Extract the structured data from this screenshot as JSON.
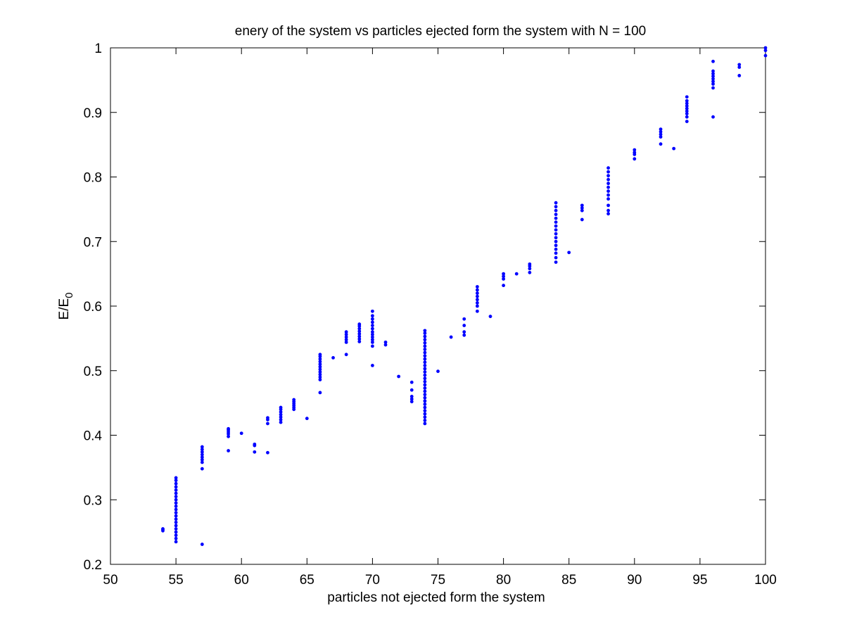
{
  "chart_data": {
    "type": "scatter",
    "title": "enery of the system vs particles ejected form the system with N = 100",
    "xlabel": "particles not ejected form the system",
    "ylabel_main": "E/E",
    "ylabel_sub": "0",
    "xlim": [
      50,
      100
    ],
    "ylim": [
      0.2,
      1.0
    ],
    "xticks": [
      "50",
      "55",
      "60",
      "65",
      "70",
      "75",
      "80",
      "85",
      "90",
      "95",
      "100"
    ],
    "yticks": [
      "0.2",
      "0.3",
      "0.4",
      "0.5",
      "0.6",
      "0.7",
      "0.8",
      "0.9",
      "1"
    ],
    "grid": false,
    "marker_color": "#0000ff",
    "axis_color": "#000000",
    "background": "#ffffff",
    "points": [
      [
        54,
        0.252
      ],
      [
        54,
        0.254
      ],
      [
        54,
        0.255
      ],
      [
        55,
        0.235
      ],
      [
        55,
        0.24
      ],
      [
        55,
        0.245
      ],
      [
        55,
        0.25
      ],
      [
        55,
        0.255
      ],
      [
        55,
        0.26
      ],
      [
        55,
        0.265
      ],
      [
        55,
        0.27
      ],
      [
        55,
        0.275
      ],
      [
        55,
        0.28
      ],
      [
        55,
        0.285
      ],
      [
        55,
        0.29
      ],
      [
        55,
        0.295
      ],
      [
        55,
        0.3
      ],
      [
        55,
        0.305
      ],
      [
        55,
        0.31
      ],
      [
        55,
        0.315
      ],
      [
        55,
        0.32
      ],
      [
        55,
        0.325
      ],
      [
        55,
        0.33
      ],
      [
        55,
        0.334
      ],
      [
        57,
        0.231
      ],
      [
        57,
        0.348
      ],
      [
        57,
        0.358
      ],
      [
        57,
        0.362
      ],
      [
        57,
        0.366
      ],
      [
        57,
        0.37
      ],
      [
        57,
        0.374
      ],
      [
        57,
        0.378
      ],
      [
        57,
        0.382
      ],
      [
        59,
        0.376
      ],
      [
        59,
        0.398
      ],
      [
        59,
        0.402
      ],
      [
        59,
        0.405
      ],
      [
        59,
        0.408
      ],
      [
        59,
        0.41
      ],
      [
        60,
        0.403
      ],
      [
        61,
        0.374
      ],
      [
        61,
        0.384
      ],
      [
        61,
        0.386
      ],
      [
        62,
        0.373
      ],
      [
        62,
        0.418
      ],
      [
        62,
        0.424
      ],
      [
        62,
        0.427
      ],
      [
        63,
        0.42
      ],
      [
        63,
        0.424
      ],
      [
        63,
        0.428
      ],
      [
        63,
        0.432
      ],
      [
        63,
        0.436
      ],
      [
        63,
        0.44
      ],
      [
        63,
        0.443
      ],
      [
        64,
        0.44
      ],
      [
        64,
        0.443
      ],
      [
        64,
        0.446
      ],
      [
        64,
        0.449
      ],
      [
        64,
        0.452
      ],
      [
        64,
        0.455
      ],
      [
        65,
        0.426
      ],
      [
        66,
        0.466
      ],
      [
        66,
        0.486
      ],
      [
        66,
        0.49
      ],
      [
        66,
        0.494
      ],
      [
        66,
        0.498
      ],
      [
        66,
        0.502
      ],
      [
        66,
        0.506
      ],
      [
        66,
        0.51
      ],
      [
        66,
        0.514
      ],
      [
        66,
        0.518
      ],
      [
        66,
        0.522
      ],
      [
        66,
        0.525
      ],
      [
        67,
        0.52
      ],
      [
        68,
        0.525
      ],
      [
        68,
        0.544
      ],
      [
        68,
        0.548
      ],
      [
        68,
        0.552
      ],
      [
        68,
        0.556
      ],
      [
        68,
        0.56
      ],
      [
        69,
        0.545
      ],
      [
        69,
        0.549
      ],
      [
        69,
        0.553
      ],
      [
        69,
        0.557
      ],
      [
        69,
        0.561
      ],
      [
        69,
        0.565
      ],
      [
        69,
        0.569
      ],
      [
        69,
        0.572
      ],
      [
        70,
        0.508
      ],
      [
        70,
        0.538
      ],
      [
        70,
        0.544
      ],
      [
        70,
        0.548
      ],
      [
        70,
        0.552
      ],
      [
        70,
        0.556
      ],
      [
        70,
        0.56
      ],
      [
        70,
        0.565
      ],
      [
        70,
        0.57
      ],
      [
        70,
        0.575
      ],
      [
        70,
        0.58
      ],
      [
        70,
        0.585
      ],
      [
        70,
        0.592
      ],
      [
        71,
        0.54
      ],
      [
        71,
        0.544
      ],
      [
        72,
        0.491
      ],
      [
        73,
        0.452
      ],
      [
        73,
        0.456
      ],
      [
        73,
        0.46
      ],
      [
        73,
        0.47
      ],
      [
        73,
        0.482
      ],
      [
        74,
        0.418
      ],
      [
        74,
        0.423
      ],
      [
        74,
        0.428
      ],
      [
        74,
        0.433
      ],
      [
        74,
        0.438
      ],
      [
        74,
        0.443
      ],
      [
        74,
        0.448
      ],
      [
        74,
        0.453
      ],
      [
        74,
        0.458
      ],
      [
        74,
        0.463
      ],
      [
        74,
        0.468
      ],
      [
        74,
        0.473
      ],
      [
        74,
        0.478
      ],
      [
        74,
        0.483
      ],
      [
        74,
        0.488
      ],
      [
        74,
        0.493
      ],
      [
        74,
        0.498
      ],
      [
        74,
        0.503
      ],
      [
        74,
        0.508
      ],
      [
        74,
        0.513
      ],
      [
        74,
        0.518
      ],
      [
        74,
        0.523
      ],
      [
        74,
        0.528
      ],
      [
        74,
        0.533
      ],
      [
        74,
        0.538
      ],
      [
        74,
        0.543
      ],
      [
        74,
        0.548
      ],
      [
        74,
        0.553
      ],
      [
        74,
        0.558
      ],
      [
        74,
        0.562
      ],
      [
        75,
        0.499
      ],
      [
        76,
        0.552
      ],
      [
        77,
        0.555
      ],
      [
        77,
        0.56
      ],
      [
        77,
        0.57
      ],
      [
        77,
        0.58
      ],
      [
        78,
        0.592
      ],
      [
        78,
        0.6
      ],
      [
        78,
        0.605
      ],
      [
        78,
        0.61
      ],
      [
        78,
        0.615
      ],
      [
        78,
        0.62
      ],
      [
        78,
        0.625
      ],
      [
        78,
        0.63
      ],
      [
        79,
        0.584
      ],
      [
        80,
        0.632
      ],
      [
        80,
        0.642
      ],
      [
        80,
        0.646
      ],
      [
        80,
        0.65
      ],
      [
        81,
        0.65
      ],
      [
        82,
        0.652
      ],
      [
        82,
        0.658
      ],
      [
        82,
        0.662
      ],
      [
        82,
        0.665
      ],
      [
        84,
        0.668
      ],
      [
        84,
        0.675
      ],
      [
        84,
        0.682
      ],
      [
        84,
        0.688
      ],
      [
        84,
        0.694
      ],
      [
        84,
        0.7
      ],
      [
        84,
        0.706
      ],
      [
        84,
        0.712
      ],
      [
        84,
        0.718
      ],
      [
        84,
        0.724
      ],
      [
        84,
        0.73
      ],
      [
        84,
        0.736
      ],
      [
        84,
        0.742
      ],
      [
        84,
        0.748
      ],
      [
        84,
        0.754
      ],
      [
        84,
        0.76
      ],
      [
        85,
        0.683
      ],
      [
        86,
        0.734
      ],
      [
        86,
        0.748
      ],
      [
        86,
        0.752
      ],
      [
        86,
        0.756
      ],
      [
        88,
        0.743
      ],
      [
        88,
        0.748
      ],
      [
        88,
        0.756
      ],
      [
        88,
        0.766
      ],
      [
        88,
        0.772
      ],
      [
        88,
        0.778
      ],
      [
        88,
        0.784
      ],
      [
        88,
        0.79
      ],
      [
        88,
        0.796
      ],
      [
        88,
        0.802
      ],
      [
        88,
        0.808
      ],
      [
        88,
        0.814
      ],
      [
        90,
        0.828
      ],
      [
        90,
        0.835
      ],
      [
        90,
        0.838
      ],
      [
        90,
        0.842
      ],
      [
        92,
        0.851
      ],
      [
        92,
        0.862
      ],
      [
        92,
        0.866
      ],
      [
        92,
        0.87
      ],
      [
        92,
        0.874
      ],
      [
        93,
        0.844
      ],
      [
        94,
        0.886
      ],
      [
        94,
        0.893
      ],
      [
        94,
        0.898
      ],
      [
        94,
        0.902
      ],
      [
        94,
        0.906
      ],
      [
        94,
        0.91
      ],
      [
        94,
        0.914
      ],
      [
        94,
        0.918
      ],
      [
        94,
        0.924
      ],
      [
        96,
        0.893
      ],
      [
        96,
        0.938
      ],
      [
        96,
        0.944
      ],
      [
        96,
        0.948
      ],
      [
        96,
        0.952
      ],
      [
        96,
        0.956
      ],
      [
        96,
        0.96
      ],
      [
        96,
        0.964
      ],
      [
        96,
        0.979
      ],
      [
        98,
        0.957
      ],
      [
        98,
        0.97
      ],
      [
        98,
        0.974
      ],
      [
        100,
        0.988
      ],
      [
        100,
        0.996
      ],
      [
        100,
        1.0
      ]
    ]
  }
}
